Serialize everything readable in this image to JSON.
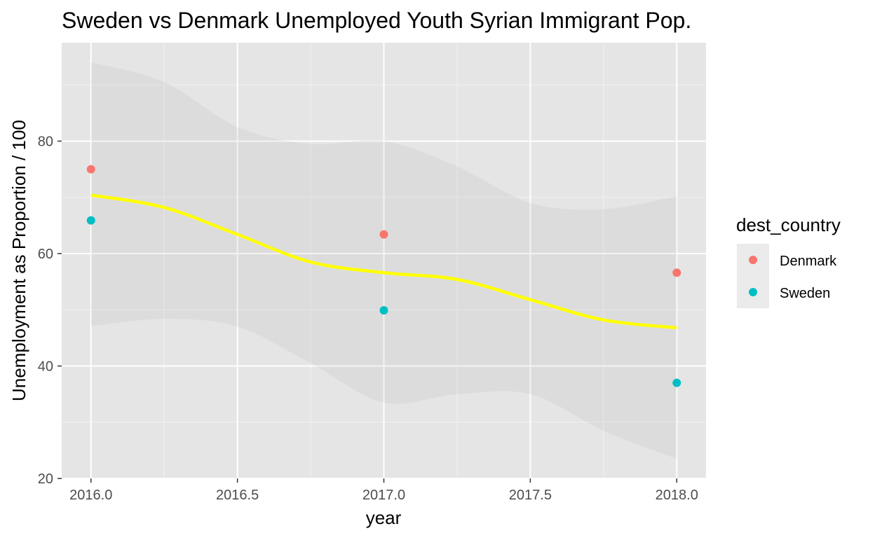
{
  "chart_data": {
    "type": "scatter",
    "title": "Sweden vs Denmark Unemployed Youth Syrian Immigrant Pop.",
    "xlabel": "year",
    "ylabel": "Unemployment as Proportion / 100",
    "xlim": [
      1995.9,
      2018.1
    ],
    "ylim": [
      20,
      97.5
    ],
    "x_ticks": [
      "2016.0",
      "2016.5",
      "2017.0",
      "2017.5",
      "2018.0"
    ],
    "x_tick_values": [
      2016.0,
      2016.5,
      2017.0,
      2017.5,
      2018.0
    ],
    "y_ticks": [
      "20",
      "40",
      "60",
      "80"
    ],
    "y_tick_values": [
      20,
      40,
      60,
      80
    ],
    "grid": true,
    "panel_background": "#e5e5e5",
    "legend": {
      "title": "dest_country",
      "position": "right",
      "entries": [
        {
          "label": "Denmark",
          "color": "#f8766d"
        },
        {
          "label": "Sweden",
          "color": "#00bfc4"
        }
      ]
    },
    "series": [
      {
        "name": "Denmark",
        "color": "#f8766d",
        "x": [
          2016,
          2017,
          2018
        ],
        "y": [
          75.0,
          63.4,
          56.6
        ]
      },
      {
        "name": "Sweden",
        "color": "#00bfc4",
        "x": [
          2016,
          2017,
          2018
        ],
        "y": [
          65.9,
          49.9,
          37.0
        ]
      }
    ],
    "smooth_line": {
      "color": "#ffff00",
      "x": [
        2016.0,
        2016.25,
        2016.5,
        2016.75,
        2017.0,
        2017.25,
        2017.5,
        2017.75,
        2018.0
      ],
      "y": [
        70.4,
        68.2,
        63.4,
        58.5,
        56.6,
        55.4,
        51.8,
        48.2,
        46.8
      ]
    },
    "smooth_band": {
      "x": [
        2016.0,
        2016.25,
        2016.5,
        2016.75,
        2017.0,
        2017.25,
        2017.5,
        2017.75,
        2018.0
      ],
      "ymin": [
        47.1,
        48.4,
        47.0,
        40.5,
        33.5,
        35.0,
        35.0,
        28.5,
        23.5
      ],
      "ymax": [
        94.0,
        90.5,
        82.5,
        79.5,
        80.0,
        75.5,
        69.0,
        67.9,
        70.2
      ]
    }
  }
}
